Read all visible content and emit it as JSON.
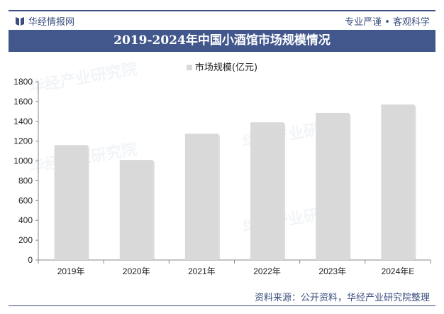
{
  "header": {
    "brand": "华经情报网",
    "slogan": "专业严谨 • 客观科学",
    "brand_color": "#3b4e7e"
  },
  "chart_data": {
    "type": "bar",
    "title": "2019-2024年中国小酒馆市场规模情况",
    "categories": [
      "2019年",
      "2020年",
      "2021年",
      "2022年",
      "2023年",
      "2024年E"
    ],
    "series": [
      {
        "name": "市场规模(亿元)",
        "values": [
          1160,
          1010,
          1275,
          1390,
          1485,
          1570
        ],
        "color": "#d9d9d9"
      }
    ],
    "ylim": [
      0,
      1800
    ],
    "yticks": [
      0,
      200,
      400,
      600,
      800,
      1000,
      1200,
      1400,
      1600,
      1800
    ],
    "legend": "top-center",
    "grid": false
  },
  "footer": {
    "source": "资料来源：公开资料，华经产业研究院整理"
  },
  "watermark": "华经产业研究院"
}
